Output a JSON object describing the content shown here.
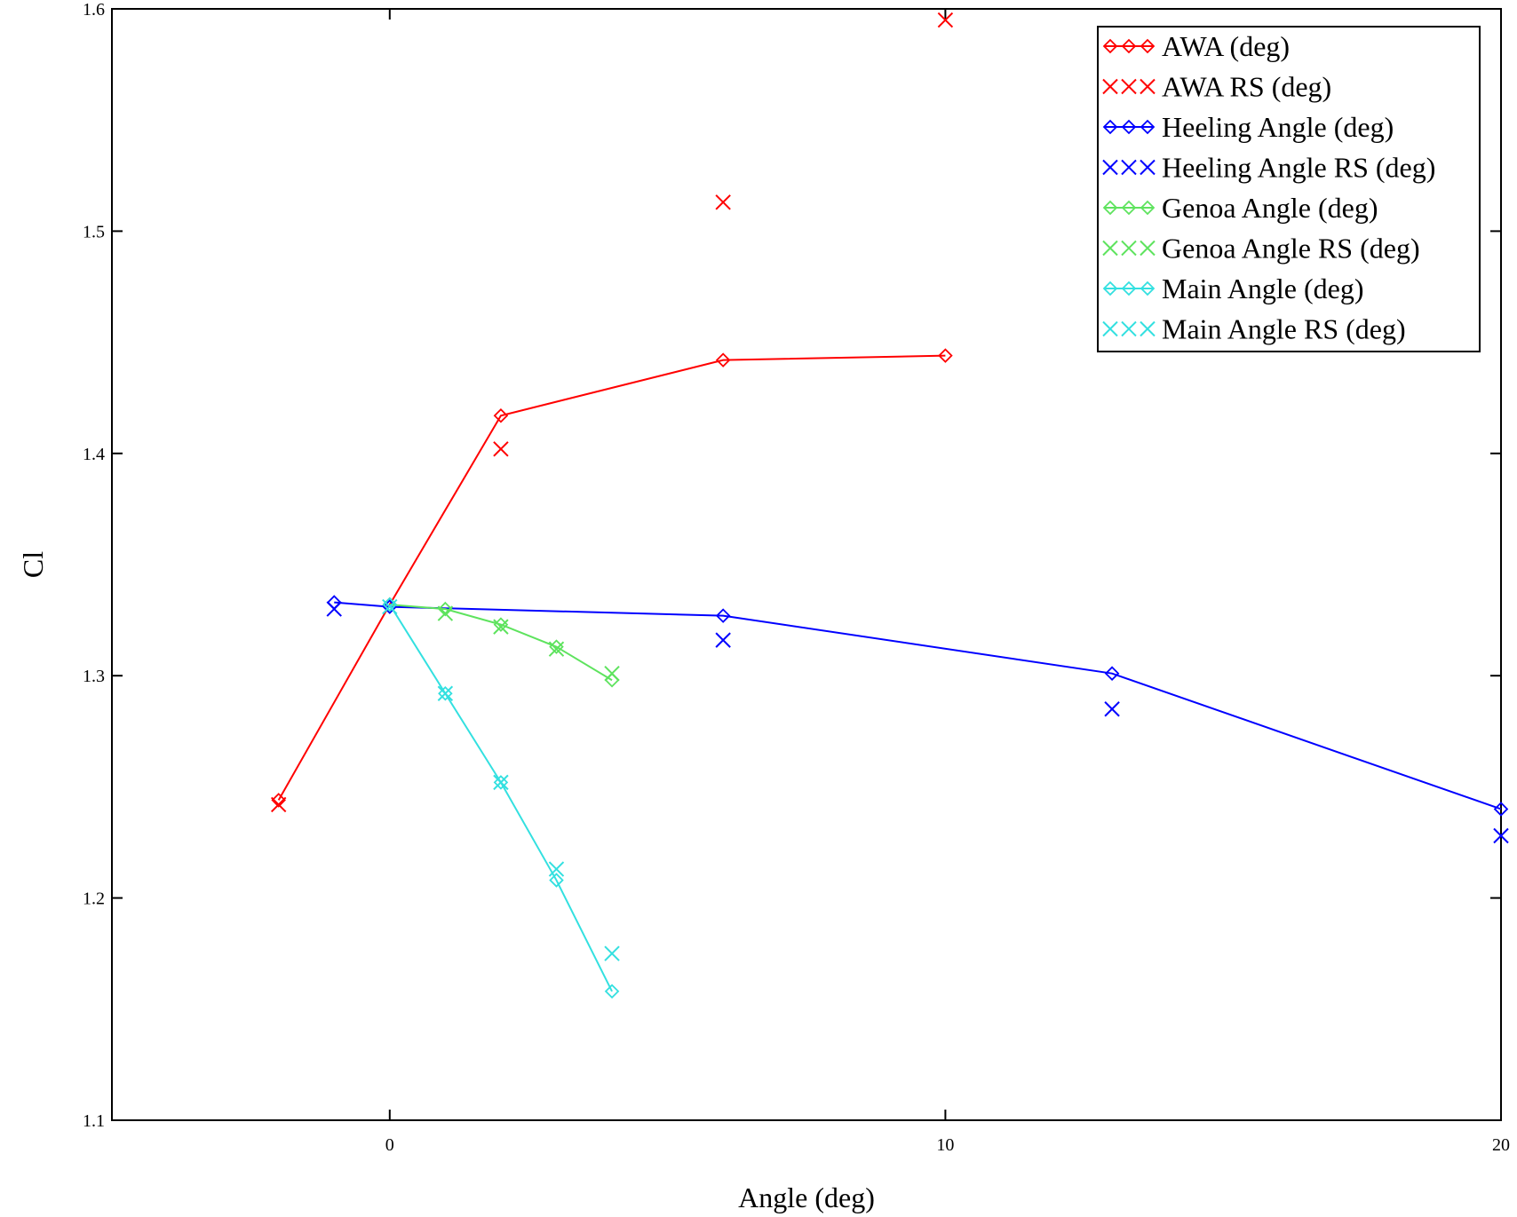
{
  "chart_data": {
    "type": "line",
    "title": "",
    "xlabel": "Angle (deg)",
    "ylabel": "Cl",
    "xlim": [
      -5,
      20
    ],
    "ylim": [
      1.1,
      1.6
    ],
    "xticks": [
      0,
      10,
      20
    ],
    "yticks": [
      1.1,
      1.2,
      1.3,
      1.4,
      1.5,
      1.6
    ],
    "xtick_labels": [
      "0",
      "10",
      "20"
    ],
    "ytick_labels": [
      "1.1",
      "1.2",
      "1.3",
      "1.4",
      "1.5",
      "1.6"
    ],
    "grid": false,
    "legend_position": "top-right",
    "series": [
      {
        "name": "AWA (deg)",
        "color": "#ff0000",
        "marker": "diamond",
        "line": true,
        "x": [
          -2,
          0,
          2,
          6,
          10
        ],
        "y": [
          1.244,
          1.332,
          1.417,
          1.442,
          1.444
        ]
      },
      {
        "name": "AWA RS (deg)",
        "color": "#ff0000",
        "marker": "cross",
        "line": false,
        "x": [
          -2,
          2,
          6,
          10
        ],
        "y": [
          1.242,
          1.402,
          1.513,
          1.595
        ]
      },
      {
        "name": "Heeling Angle (deg)",
        "color": "#0000ff",
        "marker": "diamond",
        "line": true,
        "x": [
          -1,
          0,
          6,
          13,
          20
        ],
        "y": [
          1.333,
          1.331,
          1.327,
          1.301,
          1.24
        ]
      },
      {
        "name": "Heeling Angle RS (deg)",
        "color": "#0000ff",
        "marker": "cross",
        "line": false,
        "x": [
          -1,
          6,
          13,
          20
        ],
        "y": [
          1.33,
          1.316,
          1.285,
          1.228
        ]
      },
      {
        "name": "Genoa Angle (deg)",
        "color": "#5ee35e",
        "marker": "diamond",
        "line": true,
        "x": [
          0,
          1,
          2,
          3,
          4
        ],
        "y": [
          1.332,
          1.33,
          1.323,
          1.313,
          1.298
        ]
      },
      {
        "name": "Genoa Angle  RS (deg)",
        "color": "#5ee35e",
        "marker": "cross",
        "line": false,
        "x": [
          1,
          2,
          3,
          4
        ],
        "y": [
          1.328,
          1.322,
          1.312,
          1.301
        ]
      },
      {
        "name": "Main Angle (deg)",
        "color": "#33e0e0",
        "marker": "diamond",
        "line": true,
        "x": [
          0,
          1,
          2,
          3,
          4
        ],
        "y": [
          1.332,
          1.292,
          1.252,
          1.208,
          1.158
        ]
      },
      {
        "name": "Main Angle RS (deg)",
        "color": "#33e0e0",
        "marker": "cross",
        "line": false,
        "x": [
          0,
          1,
          2,
          3,
          4
        ],
        "y": [
          1.331,
          1.292,
          1.252,
          1.213,
          1.175
        ]
      }
    ]
  }
}
